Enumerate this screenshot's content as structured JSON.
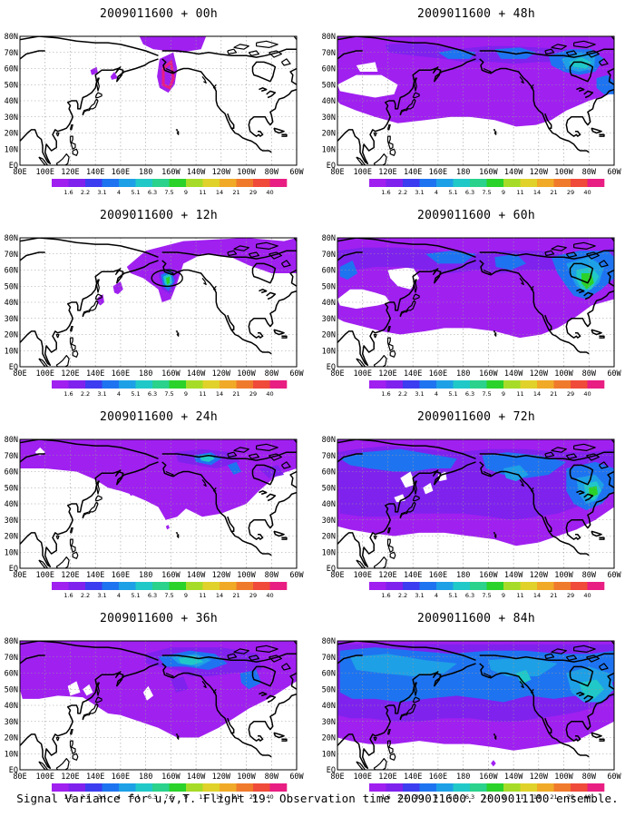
{
  "panels": [
    {
      "title": "2009011600 + 00h",
      "lead": "00h",
      "col": 0,
      "row": 0
    },
    {
      "title": "2009011600 + 12h",
      "lead": "12h",
      "col": 0,
      "row": 1
    },
    {
      "title": "2009011600 + 24h",
      "lead": "24h",
      "col": 0,
      "row": 2
    },
    {
      "title": "2009011600 + 36h",
      "lead": "36h",
      "col": 0,
      "row": 3
    },
    {
      "title": "2009011600 + 48h",
      "lead": "48h",
      "col": 1,
      "row": 0
    },
    {
      "title": "2009011600 + 60h",
      "lead": "60h",
      "col": 1,
      "row": 1
    },
    {
      "title": "2009011600 + 72h",
      "lead": "72h",
      "col": 1,
      "row": 2
    },
    {
      "title": "2009011600 + 84h",
      "lead": "84h",
      "col": 1,
      "row": 3
    }
  ],
  "map": {
    "lon_labels": [
      "80E",
      "100E",
      "120E",
      "140E",
      "160E",
      "180",
      "160W",
      "140W",
      "120W",
      "100W",
      "80W",
      "60W"
    ],
    "lat_labels": [
      "EQ",
      "10N",
      "20N",
      "30N",
      "40N",
      "50N",
      "60N",
      "70N",
      "80N"
    ],
    "grid_lines": true
  },
  "colorbar": {
    "levels": [
      "1.6",
      "2.2",
      "3.1",
      "4",
      "5.1",
      "6.3",
      "7.5",
      "9",
      "11",
      "14",
      "21",
      "29",
      "40"
    ],
    "colors": [
      "#a020f0",
      "#7f22ee",
      "#3c3cf0",
      "#1e74f0",
      "#1ea0e6",
      "#21c8c8",
      "#2ad28c",
      "#2ad22a",
      "#a6dc28",
      "#e0d22a",
      "#f0aa28",
      "#f07a2c",
      "#f04a3a",
      "#e81e82"
    ]
  },
  "caption": "Signal Variance for u,v,T. Flight 19. Observation time 2009011600. 2009011100 ensemble."
}
